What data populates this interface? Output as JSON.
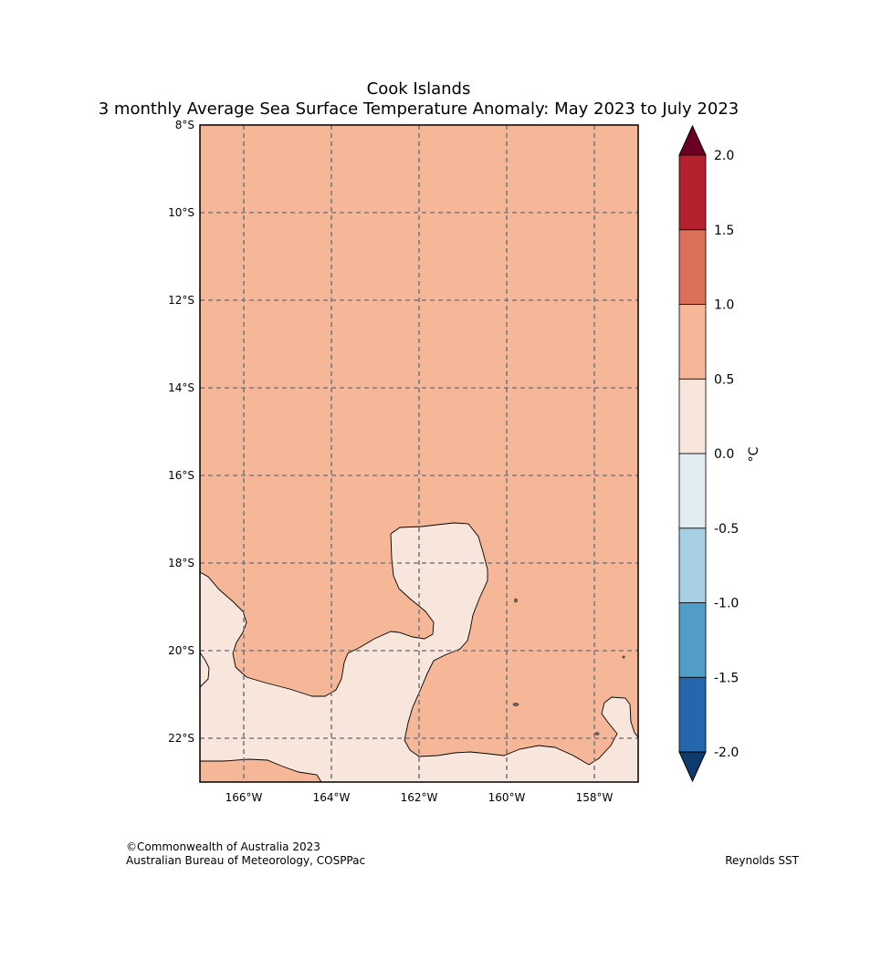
{
  "title": "Cook Islands",
  "subtitle": "3 monthly Average Sea Surface Temperature Anomaly: May 2023 to July 2023",
  "map": {
    "region": "Cook Islands",
    "lon_range": [
      -167,
      -157
    ],
    "lat_range": [
      -23,
      -8
    ],
    "lon_ticks": [
      {
        "value": -166,
        "label": "166°W"
      },
      {
        "value": -164,
        "label": "164°W"
      },
      {
        "value": -162,
        "label": "162°W"
      },
      {
        "value": -160,
        "label": "160°W"
      },
      {
        "value": -158,
        "label": "158°W"
      }
    ],
    "lat_ticks": [
      {
        "value": -8,
        "label": "8°S"
      },
      {
        "value": -10,
        "label": "10°S"
      },
      {
        "value": -12,
        "label": "12°S"
      },
      {
        "value": -14,
        "label": "14°S"
      },
      {
        "value": -16,
        "label": "16°S"
      },
      {
        "value": -18,
        "label": "18°S"
      },
      {
        "value": -20,
        "label": "20°S"
      },
      {
        "value": -22,
        "label": "22°S"
      }
    ],
    "grid": true,
    "background_class_color": "#f6b799",
    "contour_class_color": "#f8e6dc"
  },
  "colorbar": {
    "unit_label": "°C",
    "levels": [
      -2.0,
      -1.5,
      -1.0,
      -0.5,
      0.0,
      0.5,
      1.0,
      1.5,
      2.0
    ],
    "tick_labels": [
      "-2.0",
      "-1.5",
      "-1.0",
      "-0.5",
      "0.0",
      "0.5",
      "1.0",
      "1.5",
      "2.0"
    ],
    "colors": [
      "#2467ad",
      "#529dc8",
      "#a7cfe4",
      "#e1edf3",
      "#f8e6dc",
      "#f6b799",
      "#dc6f58",
      "#b5212f"
    ],
    "under_color": "#0d3a6f",
    "over_color": "#6a0023"
  },
  "footer": {
    "copyright": "©Commonwealth of Australia 2023",
    "agency": "Australian Bureau of Meteorology, COSPPac",
    "source": "Reynolds SST"
  }
}
